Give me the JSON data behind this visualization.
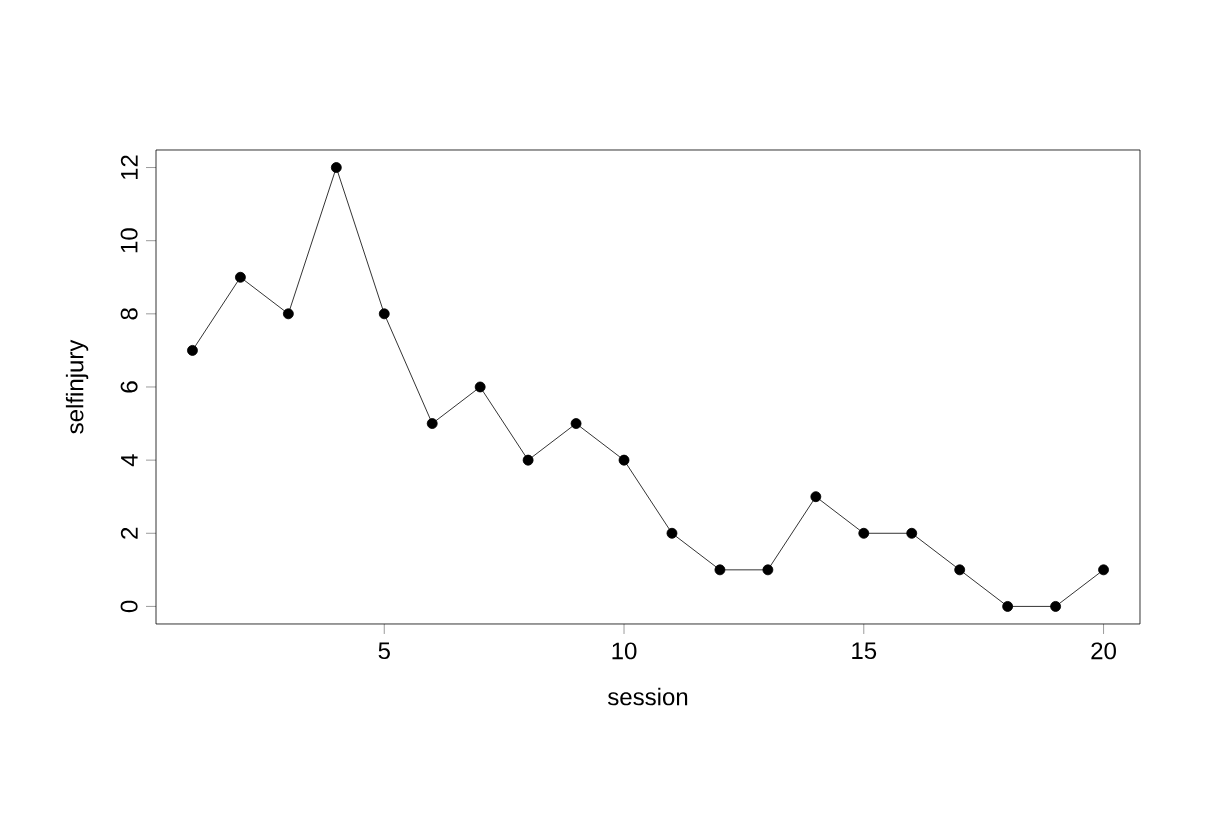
{
  "chart_data": {
    "type": "line",
    "xlabel": "session",
    "ylabel": "selfinjury",
    "x": [
      1,
      2,
      3,
      4,
      5,
      6,
      7,
      8,
      9,
      10,
      11,
      12,
      13,
      14,
      15,
      16,
      17,
      18,
      19,
      20
    ],
    "values": [
      7,
      9,
      8,
      12,
      8,
      5,
      6,
      4,
      5,
      4,
      2,
      1,
      1,
      3,
      2,
      2,
      1,
      0,
      0,
      1
    ],
    "color": "#000000",
    "marker": "circle",
    "line_style": "solid",
    "xlim": [
      0.24,
      20.76
    ],
    "ylim": [
      -0.48,
      12.48
    ],
    "xticks": [
      5,
      10,
      15,
      20
    ],
    "yticks": [
      0,
      2,
      4,
      6,
      8,
      10,
      12
    ]
  }
}
